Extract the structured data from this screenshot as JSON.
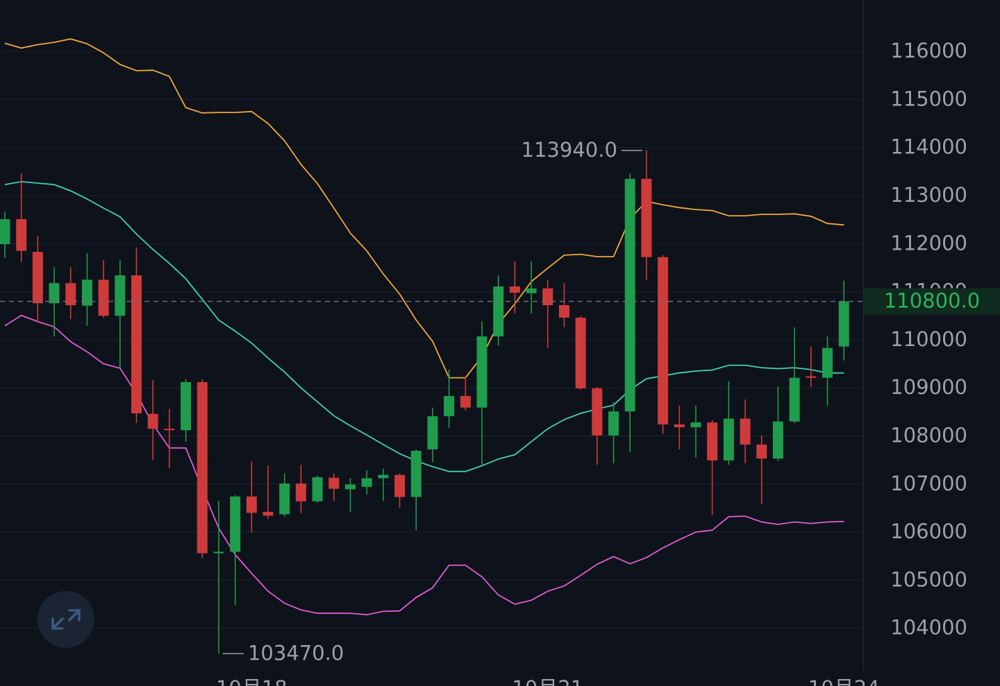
{
  "chart_data": {
    "type": "candlestick",
    "categories": [
      null,
      null,
      null,
      null,
      null,
      null,
      null,
      null,
      null,
      null,
      null,
      null,
      null,
      null,
      null,
      "10月18",
      null,
      null,
      null,
      null,
      null,
      null,
      null,
      null,
      null,
      null,
      null,
      null,
      null,
      null,
      null,
      null,
      null,
      "10月21",
      null,
      null,
      null,
      null,
      null,
      null,
      null,
      null,
      null,
      null,
      null,
      null,
      null,
      null,
      null,
      null,
      null,
      "10月24"
    ],
    "open": [
      111990,
      112510,
      111830,
      110760,
      111180,
      110710,
      111250,
      110500,
      111340,
      108460,
      108150,
      108120,
      109120,
      105560,
      105590,
      106740,
      106420,
      106370,
      107010,
      106640,
      107130,
      106890,
      106940,
      107120,
      107190,
      106730,
      107720,
      108410,
      108830,
      108590,
      110070,
      111110,
      110970,
      111070,
      110720,
      110460,
      108990,
      108010,
      108510,
      113350,
      111720,
      108240,
      108180,
      108280,
      107490,
      108360,
      107820,
      107530,
      108300,
      109240,
      109210,
      109860
    ],
    "high": [
      112670,
      113460,
      112160,
      111510,
      111510,
      111800,
      111660,
      111660,
      111920,
      109160,
      108560,
      109180,
      109180,
      106650,
      106770,
      107470,
      107380,
      107220,
      107400,
      107170,
      107220,
      107120,
      107290,
      107320,
      107220,
      107720,
      108590,
      109380,
      109240,
      110390,
      111340,
      111640,
      111630,
      111250,
      111180,
      110500,
      109020,
      108700,
      113460,
      113940,
      111760,
      108630,
      108630,
      108330,
      109140,
      108760,
      108010,
      109030,
      110260,
      109860,
      110070,
      111230
    ],
    "low": [
      111700,
      111620,
      110360,
      110070,
      110430,
      110290,
      110460,
      109420,
      108270,
      107500,
      107330,
      107880,
      105460,
      103470,
      104480,
      105990,
      106280,
      106320,
      106390,
      106610,
      106650,
      106420,
      106780,
      106650,
      106510,
      106040,
      107450,
      108170,
      108530,
      107380,
      109880,
      110550,
      110550,
      109830,
      110260,
      108960,
      107400,
      107430,
      107660,
      111240,
      108040,
      107720,
      107550,
      106350,
      107400,
      107430,
      106580,
      107480,
      108270,
      109020,
      108630,
      109570
    ],
    "close": [
      112510,
      111850,
      110760,
      111180,
      110720,
      111250,
      110500,
      111340,
      108470,
      108150,
      108120,
      109120,
      105560,
      105590,
      106740,
      106400,
      106340,
      107010,
      106640,
      107140,
      106900,
      106990,
      107120,
      107190,
      106730,
      107690,
      108410,
      108830,
      108590,
      110070,
      111110,
      110980,
      111070,
      110720,
      110460,
      108990,
      108010,
      108510,
      113350,
      111720,
      108240,
      108180,
      108280,
      107490,
      108360,
      107820,
      107530,
      108300,
      109210,
      109210,
      109830,
      110800
    ],
    "up_color": "#1f9d4c",
    "down_color": "#cf3b3b",
    "series": [
      {
        "color": "#f2a83a",
        "values": [
          116170,
          116070,
          116140,
          116190,
          116260,
          116160,
          115970,
          115730,
          115600,
          115610,
          115480,
          114830,
          114720,
          114730,
          114730,
          114750,
          114500,
          114140,
          113650,
          113250,
          112740,
          112220,
          111850,
          111370,
          110950,
          110410,
          109970,
          109210,
          109210,
          109650,
          110330,
          110750,
          111210,
          111490,
          111760,
          111780,
          111730,
          111730,
          112520,
          112880,
          112810,
          112750,
          112710,
          112690,
          112580,
          112580,
          112610,
          112610,
          112620,
          112570,
          112420,
          112390
        ]
      },
      {
        "color": "#40d2b8",
        "values": [
          113230,
          113290,
          113260,
          113230,
          113100,
          112930,
          112740,
          112560,
          112200,
          111880,
          111590,
          111270,
          110840,
          110410,
          110180,
          109930,
          109620,
          109330,
          109000,
          108710,
          108420,
          108210,
          108020,
          107820,
          107630,
          107480,
          107360,
          107260,
          107260,
          107380,
          107520,
          107610,
          107880,
          108150,
          108340,
          108470,
          108560,
          108640,
          108960,
          109190,
          109250,
          109310,
          109350,
          109370,
          109470,
          109470,
          109420,
          109400,
          109420,
          109380,
          109310,
          109310
        ]
      },
      {
        "color": "#e25bd2",
        "values": [
          110290,
          110510,
          110380,
          110270,
          109960,
          109750,
          109500,
          109410,
          108880,
          108240,
          107750,
          107750,
          106900,
          106080,
          105530,
          105140,
          104770,
          104520,
          104380,
          104310,
          104310,
          104310,
          104280,
          104350,
          104360,
          104640,
          104840,
          105310,
          105310,
          105070,
          104690,
          104500,
          104580,
          104770,
          104880,
          105100,
          105330,
          105490,
          105340,
          105470,
          105670,
          105840,
          106000,
          106040,
          106320,
          106330,
          106210,
          106160,
          106210,
          106180,
          106210,
          106220
        ]
      }
    ],
    "ylim": [
      103100,
      117070
    ],
    "yticks": [
      104000,
      105000,
      106000,
      107000,
      108000,
      109000,
      110000,
      111000,
      112000,
      113000,
      114000,
      115000,
      116000
    ],
    "grid": true,
    "annotations": [
      {
        "value": 113940,
        "label": "113940.0"
      },
      {
        "value": 103470,
        "label": "103470.0"
      }
    ],
    "current_price": {
      "value": 110800,
      "label": "110800.0",
      "color": "#2fb35a"
    }
  }
}
